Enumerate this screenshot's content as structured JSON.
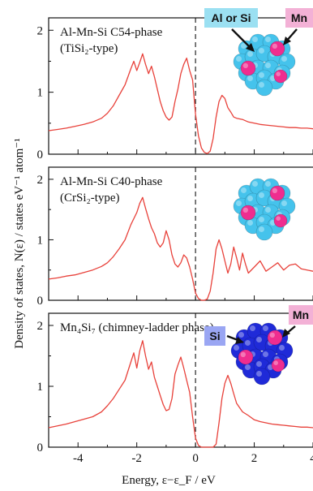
{
  "chart_data": {
    "type": "line",
    "ylabel": "Density of states, N(ε) / states eV⁻¹ atom⁻¹",
    "xlabel": "Energy, ε−ε_F / eV",
    "xlim": [
      -5,
      4
    ],
    "x_ticks": [
      -4,
      -2,
      0,
      2,
      4
    ],
    "fermi_level_marker": 0,
    "line_color": "#e8413a",
    "atom_colors": {
      "al_si": "#45c3ec",
      "mn": "#ef2d8f",
      "si": "#1f2ad8"
    },
    "panels": [
      {
        "title_line1": "Al-Mn-Si C54-phase",
        "title_line2": "(TiSi₂-type)",
        "ylim": [
          0,
          2.2
        ],
        "y_ticks": [
          0,
          1,
          2
        ],
        "legend": [
          "Al or Si",
          "Mn"
        ],
        "x": [
          -5.0,
          -4.7,
          -4.4,
          -4.1,
          -3.8,
          -3.5,
          -3.2,
          -3.0,
          -2.8,
          -2.6,
          -2.4,
          -2.2,
          -2.1,
          -2.0,
          -1.9,
          -1.8,
          -1.7,
          -1.6,
          -1.5,
          -1.4,
          -1.3,
          -1.2,
          -1.1,
          -1.0,
          -0.9,
          -0.8,
          -0.7,
          -0.6,
          -0.5,
          -0.4,
          -0.3,
          -0.2,
          -0.1,
          0.0,
          0.1,
          0.2,
          0.3,
          0.4,
          0.5,
          0.6,
          0.7,
          0.8,
          0.9,
          1.0,
          1.1,
          1.2,
          1.3,
          1.4,
          1.6,
          1.8,
          2.0,
          2.2,
          2.4,
          2.6,
          2.8,
          3.0,
          3.2,
          3.4,
          3.6,
          3.8,
          4.0
        ],
        "values": [
          0.38,
          0.4,
          0.42,
          0.45,
          0.48,
          0.52,
          0.58,
          0.66,
          0.78,
          0.95,
          1.12,
          1.38,
          1.5,
          1.35,
          1.48,
          1.62,
          1.45,
          1.3,
          1.42,
          1.25,
          1.05,
          0.85,
          0.7,
          0.6,
          0.55,
          0.6,
          0.85,
          1.05,
          1.3,
          1.45,
          1.55,
          1.35,
          1.2,
          0.65,
          0.3,
          0.1,
          0.03,
          0.01,
          0.05,
          0.25,
          0.6,
          0.85,
          0.95,
          0.9,
          0.75,
          0.68,
          0.6,
          0.58,
          0.56,
          0.52,
          0.5,
          0.48,
          0.47,
          0.46,
          0.45,
          0.44,
          0.43,
          0.43,
          0.42,
          0.42,
          0.41
        ]
      },
      {
        "title_line1": "Al-Mn-Si C40-phase",
        "title_line2": "(CrSi₂-type)",
        "ylim": [
          0,
          2.2
        ],
        "y_ticks": [
          0,
          1,
          2
        ],
        "legend": [],
        "x": [
          -5.0,
          -4.7,
          -4.4,
          -4.1,
          -3.8,
          -3.5,
          -3.2,
          -3.0,
          -2.8,
          -2.6,
          -2.4,
          -2.2,
          -2.0,
          -1.9,
          -1.8,
          -1.7,
          -1.6,
          -1.5,
          -1.4,
          -1.3,
          -1.2,
          -1.1,
          -1.0,
          -0.9,
          -0.8,
          -0.7,
          -0.6,
          -0.5,
          -0.4,
          -0.3,
          -0.2,
          -0.1,
          0.0,
          0.1,
          0.2,
          0.3,
          0.4,
          0.5,
          0.6,
          0.7,
          0.8,
          0.9,
          1.0,
          1.1,
          1.2,
          1.3,
          1.4,
          1.5,
          1.6,
          1.7,
          1.8,
          2.0,
          2.2,
          2.4,
          2.6,
          2.8,
          3.0,
          3.2,
          3.4,
          3.6,
          3.8,
          4.0
        ],
        "values": [
          0.35,
          0.37,
          0.4,
          0.42,
          0.46,
          0.5,
          0.56,
          0.62,
          0.72,
          0.85,
          1.0,
          1.25,
          1.45,
          1.6,
          1.7,
          1.52,
          1.35,
          1.2,
          1.1,
          0.95,
          0.88,
          0.95,
          1.15,
          1.0,
          0.75,
          0.6,
          0.55,
          0.62,
          0.75,
          0.7,
          0.55,
          0.35,
          0.12,
          0.03,
          0.0,
          0.0,
          0.02,
          0.15,
          0.45,
          0.85,
          1.0,
          0.85,
          0.65,
          0.45,
          0.6,
          0.88,
          0.7,
          0.5,
          0.78,
          0.6,
          0.45,
          0.55,
          0.65,
          0.48,
          0.55,
          0.62,
          0.5,
          0.58,
          0.6,
          0.52,
          0.5,
          0.48
        ]
      },
      {
        "title_line1": "Mn₄Si₇ (chimney-ladder phase)",
        "title_line2": "",
        "ylim": [
          0,
          2.2
        ],
        "y_ticks": [
          0,
          1,
          2
        ],
        "legend": [
          "Si",
          "Mn"
        ],
        "x": [
          -5.0,
          -4.7,
          -4.4,
          -4.1,
          -3.8,
          -3.5,
          -3.2,
          -3.0,
          -2.8,
          -2.6,
          -2.4,
          -2.2,
          -2.1,
          -2.0,
          -1.9,
          -1.8,
          -1.7,
          -1.6,
          -1.5,
          -1.4,
          -1.3,
          -1.2,
          -1.1,
          -1.0,
          -0.9,
          -0.8,
          -0.7,
          -0.6,
          -0.5,
          -0.4,
          -0.3,
          -0.2,
          -0.1,
          0.0,
          0.1,
          0.2,
          0.3,
          0.4,
          0.5,
          0.6,
          0.7,
          0.8,
          0.9,
          1.0,
          1.1,
          1.2,
          1.3,
          1.4,
          1.6,
          1.8,
          2.0,
          2.2,
          2.4,
          2.6,
          2.8,
          3.0,
          3.2,
          3.4,
          3.6,
          3.8,
          4.0
        ],
        "values": [
          0.32,
          0.35,
          0.38,
          0.42,
          0.46,
          0.5,
          0.58,
          0.68,
          0.8,
          0.95,
          1.1,
          1.4,
          1.55,
          1.3,
          1.58,
          1.75,
          1.5,
          1.28,
          1.4,
          1.15,
          1.0,
          0.85,
          0.7,
          0.6,
          0.62,
          0.8,
          1.2,
          1.35,
          1.48,
          1.3,
          1.1,
          0.9,
          0.5,
          0.15,
          0.03,
          0.0,
          0.0,
          0.0,
          0.0,
          0.0,
          0.05,
          0.4,
          0.8,
          1.05,
          1.18,
          1.05,
          0.88,
          0.72,
          0.58,
          0.52,
          0.45,
          0.42,
          0.4,
          0.38,
          0.37,
          0.36,
          0.35,
          0.34,
          0.33,
          0.33,
          0.32
        ]
      }
    ]
  }
}
